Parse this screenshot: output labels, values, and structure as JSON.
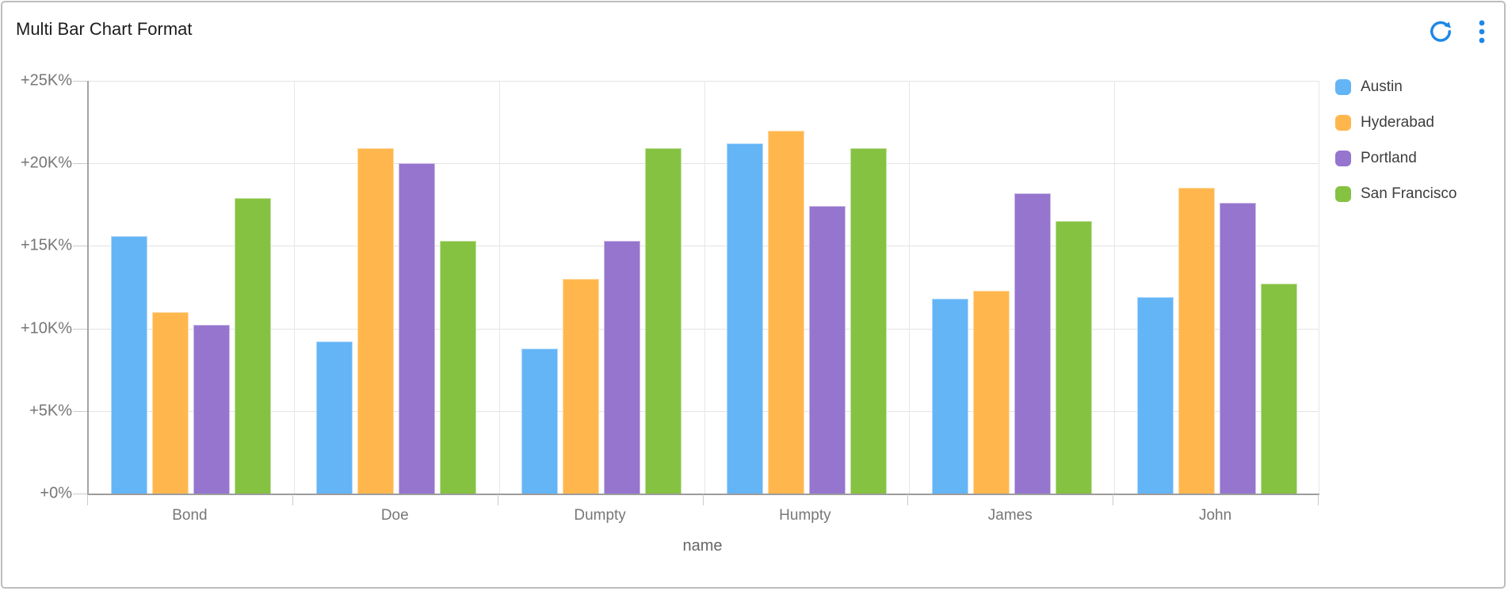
{
  "header": {
    "title": "Multi Bar Chart Format"
  },
  "icons": {
    "refresh": "refresh-icon",
    "menu": "kebab-menu-icon"
  },
  "colors": {
    "accent": "#1E88E5",
    "grid": "#E3E3E3",
    "axis_line": "#A3A3A3",
    "title_text": "#1D1D1D",
    "axis_text": "#767676",
    "legend_text": "#3D3D3D"
  },
  "chart_data": {
    "type": "bar",
    "title": "Multi Bar Chart Format",
    "categories": [
      "Bond",
      "Doe",
      "Dumpty",
      "Humpty",
      "James",
      "John"
    ],
    "series": [
      {
        "name": "Austin",
        "color": "#64B5F6",
        "values": [
          15.6,
          9.2,
          8.8,
          21.2,
          11.8,
          11.9
        ]
      },
      {
        "name": "Hyderabad",
        "color": "#FFB74D",
        "values": [
          11.0,
          20.9,
          13.0,
          22.0,
          12.3,
          18.5
        ]
      },
      {
        "name": "Portland",
        "color": "#9575CD",
        "values": [
          10.2,
          20.0,
          15.3,
          17.4,
          18.2,
          17.6
        ]
      },
      {
        "name": "San Francisco",
        "color": "#85C242",
        "values": [
          17.9,
          15.3,
          20.9,
          20.9,
          16.5,
          12.7
        ]
      }
    ],
    "values_unit": "K%",
    "xlabel": "name",
    "ylabel": "",
    "ylim": [
      0,
      25
    ],
    "y_ticks_bottom_to_top": [
      "+0%",
      "+5K%",
      "+10K%",
      "+15K%",
      "+20K%",
      "+25K%"
    ],
    "grid": true,
    "legend_position": "right"
  }
}
